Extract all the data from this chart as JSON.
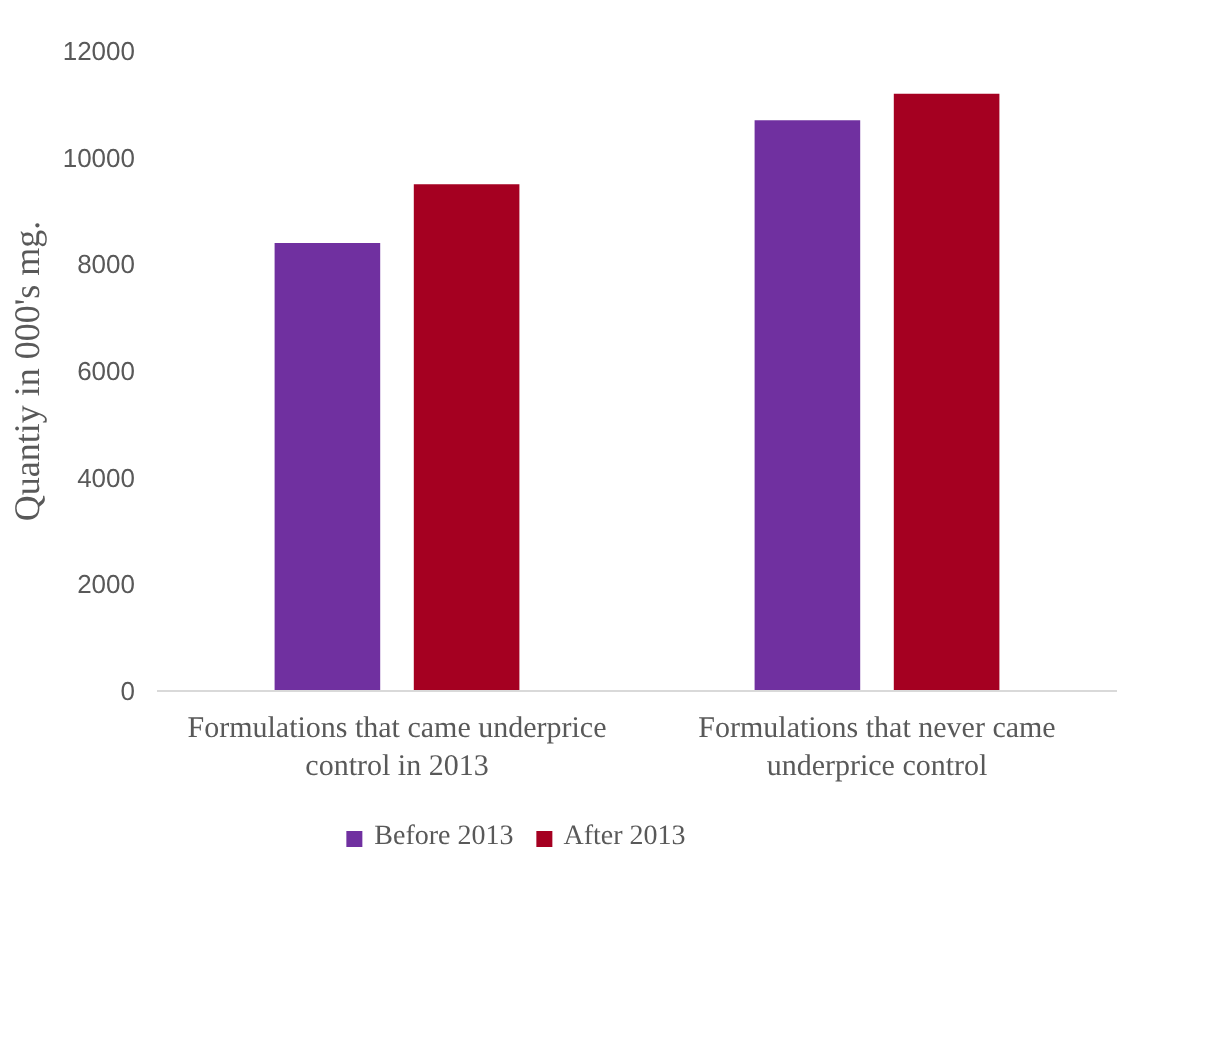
{
  "chart_data": {
    "type": "bar",
    "ylabel": "Quantiy in 000's mg.",
    "categories": [
      "Formulations that came underprice\ncontrol in 2013",
      "Formulations that never came\nunderprice control"
    ],
    "series": [
      {
        "name": "Before 2013",
        "color": "#7030a0",
        "values": [
          8400,
          10700
        ]
      },
      {
        "name": "After 2013",
        "color": "#a50021",
        "values": [
          9500,
          11200
        ]
      }
    ],
    "ylim": [
      0,
      12000
    ],
    "yticks": [
      0,
      2000,
      4000,
      6000,
      8000,
      10000,
      12000
    ],
    "grid": false,
    "legend": "bottom"
  }
}
